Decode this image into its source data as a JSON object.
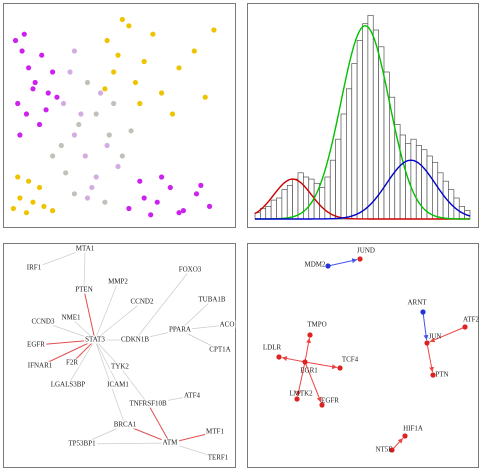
{
  "chart_data": [
    {
      "type": "scatter",
      "xlim": [
        0,
        100
      ],
      "ylim": [
        0,
        100
      ],
      "series": [
        {
          "color": "#cc22ee",
          "x": [
            3,
            6,
            9,
            12,
            15,
            18,
            4,
            8,
            14,
            20,
            5,
            11,
            17,
            22,
            7,
            55,
            62,
            68,
            74,
            80,
            86,
            92,
            60,
            70,
            78,
            88,
            65
          ],
          "values": [
            85,
            80,
            72,
            65,
            78,
            60,
            55,
            50,
            45,
            70,
            40,
            62,
            52,
            58,
            88,
            5,
            10,
            8,
            15,
            4,
            12,
            6,
            18,
            20,
            3,
            16,
            2
          ]
        },
        {
          "color": "#eec400",
          "x": [
            2,
            5,
            8,
            11,
            14,
            4,
            9,
            16,
            20,
            45,
            50,
            55,
            48,
            58,
            62,
            70,
            78,
            85,
            90,
            52,
            66,
            75,
            94,
            44,
            60
          ],
          "values": [
            5,
            10,
            3,
            8,
            15,
            20,
            18,
            6,
            4,
            85,
            78,
            92,
            70,
            65,
            75,
            60,
            72,
            80,
            58,
            95,
            88,
            50,
            90,
            62,
            55
          ]
        },
        {
          "color": "#d3ade2",
          "x": [
            25,
            30,
            35,
            28,
            40,
            45,
            33,
            38,
            42,
            50,
            30,
            36
          ],
          "values": [
            55,
            40,
            30,
            70,
            20,
            35,
            50,
            15,
            60,
            25,
            80,
            10
          ]
        },
        {
          "color": "#c2c0b8",
          "x": [
            20,
            26,
            32,
            40,
            46,
            52,
            30,
            44,
            36,
            56,
            24,
            48
          ],
          "values": [
            30,
            22,
            45,
            50,
            40,
            30,
            12,
            8,
            65,
            42,
            35,
            55
          ]
        }
      ]
    },
    {
      "type": "histogram",
      "xlim": [
        0,
        40
      ],
      "ylim": [
        0,
        100
      ],
      "color": "#555555",
      "bins": [
        0,
        1,
        2,
        3,
        4,
        5,
        6,
        7,
        8,
        9,
        10,
        11,
        12,
        13,
        14,
        15,
        16,
        17,
        18,
        19,
        20,
        21,
        22,
        23,
        24,
        25,
        26,
        27,
        28,
        29,
        30,
        31,
        32,
        33,
        34,
        35,
        36,
        37,
        38,
        39,
        40
      ],
      "values": [
        3,
        5,
        6,
        9,
        10,
        14,
        16,
        19,
        22,
        20,
        19,
        17,
        15,
        20,
        28,
        38,
        50,
        62,
        74,
        85,
        93,
        97,
        90,
        82,
        70,
        58,
        45,
        40,
        36,
        38,
        35,
        33,
        30,
        27,
        22,
        18,
        14,
        10,
        6,
        4
      ],
      "fits": [
        {
          "color": "#cc0000",
          "mean": 7,
          "sd": 3.5,
          "peak": 19
        },
        {
          "color": "#00c000",
          "mean": 20.5,
          "sd": 4.5,
          "peak": 92
        },
        {
          "color": "#0000cc",
          "mean": 29,
          "sd": 4.5,
          "peak": 28
        }
      ]
    },
    {
      "type": "network",
      "nodes": [
        {
          "label": "IRF1"
        },
        {
          "label": "MTA1"
        },
        {
          "label": "MMP2"
        },
        {
          "label": "FOXO3"
        },
        {
          "label": "PTEN"
        },
        {
          "label": "CCND2"
        },
        {
          "label": "TUBA1B"
        },
        {
          "label": "CCND3"
        },
        {
          "label": "NME1"
        },
        {
          "label": "STAT3"
        },
        {
          "label": "CDKN1B"
        },
        {
          "label": "PPARA"
        },
        {
          "label": "ACO"
        },
        {
          "label": "EGFR"
        },
        {
          "label": "CPT1A"
        },
        {
          "label": "IFNAR1"
        },
        {
          "label": "F2R"
        },
        {
          "label": "TYK2"
        },
        {
          "label": "LGALS3BP"
        },
        {
          "label": "ICAM1"
        },
        {
          "label": "TNFRSF10B"
        },
        {
          "label": "ATF4"
        },
        {
          "label": "BRCA1"
        },
        {
          "label": "TP53BP1"
        },
        {
          "label": "ATM"
        },
        {
          "label": "MTF1"
        },
        {
          "label": "TERF1"
        }
      ],
      "edges": [
        {
          "source": 9,
          "target": 4,
          "color": "#e05050"
        },
        {
          "source": 9,
          "target": 13,
          "color": "#e05050"
        },
        {
          "source": 9,
          "target": 15,
          "color": "#e05050"
        },
        {
          "source": 9,
          "target": 16,
          "color": "#e05050"
        },
        {
          "source": 9,
          "target": 8,
          "color": "#cccccc"
        },
        {
          "source": 9,
          "target": 7,
          "color": "#cccccc"
        },
        {
          "source": 9,
          "target": 10,
          "color": "#cccccc"
        },
        {
          "source": 9,
          "target": 17,
          "color": "#cccccc"
        },
        {
          "source": 9,
          "target": 19,
          "color": "#cccccc"
        },
        {
          "source": 9,
          "target": 18,
          "color": "#cccccc"
        },
        {
          "source": 9,
          "target": 2,
          "color": "#cccccc"
        },
        {
          "source": 9,
          "target": 5,
          "color": "#cccccc"
        },
        {
          "source": 1,
          "target": 4,
          "color": "#cccccc"
        },
        {
          "source": 0,
          "target": 1,
          "color": "#cccccc"
        },
        {
          "source": 11,
          "target": 12,
          "color": "#cccccc"
        },
        {
          "source": 11,
          "target": 14,
          "color": "#cccccc"
        },
        {
          "source": 11,
          "target": 6,
          "color": "#cccccc"
        },
        {
          "source": 10,
          "target": 11,
          "color": "#cccccc"
        },
        {
          "source": 17,
          "target": 20,
          "color": "#cccccc"
        },
        {
          "source": 20,
          "target": 21,
          "color": "#cccccc"
        },
        {
          "source": 20,
          "target": 24,
          "color": "#e05050"
        },
        {
          "source": 22,
          "target": 24,
          "color": "#e05050"
        },
        {
          "source": 24,
          "target": 25,
          "color": "#e05050"
        },
        {
          "source": 24,
          "target": 23,
          "color": "#cccccc"
        },
        {
          "source": 24,
          "target": 26,
          "color": "#cccccc"
        },
        {
          "source": 22,
          "target": 23,
          "color": "#cccccc"
        },
        {
          "source": 9,
          "target": 22,
          "color": "#cccccc"
        },
        {
          "source": 10,
          "target": 3,
          "color": "#cccccc"
        }
      ]
    },
    {
      "type": "network",
      "nodes": [
        {
          "label": "MDM2",
          "color": "#2233dd"
        },
        {
          "label": "JUND",
          "color": "#dd2222"
        },
        {
          "label": "ARNT",
          "color": "#2233dd"
        },
        {
          "label": "JUN",
          "color": "#dd2222"
        },
        {
          "label": "ATF2",
          "color": "#dd2222"
        },
        {
          "label": "PTN",
          "color": "#dd2222"
        },
        {
          "label": "TMPO",
          "color": "#dd2222"
        },
        {
          "label": "LDLR",
          "color": "#dd2222"
        },
        {
          "label": "EGR1",
          "color": "#dd2222"
        },
        {
          "label": "TCF4",
          "color": "#dd2222"
        },
        {
          "label": "LMTK2",
          "color": "#dd2222"
        },
        {
          "label": "EGFR",
          "color": "#dd2222"
        },
        {
          "label": "HIF1A",
          "color": "#dd2222"
        },
        {
          "label": "NT5E",
          "color": "#dd2222"
        }
      ],
      "edges": [
        {
          "source": 0,
          "target": 1,
          "color": "#4455ee"
        },
        {
          "source": 2,
          "target": 3,
          "color": "#4455ee"
        },
        {
          "source": 4,
          "target": 3,
          "color": "#ee4444"
        },
        {
          "source": 3,
          "target": 5,
          "color": "#ee4444"
        },
        {
          "source": 8,
          "target": 6,
          "color": "#ee4444"
        },
        {
          "source": 8,
          "target": 7,
          "color": "#ee4444"
        },
        {
          "source": 8,
          "target": 9,
          "color": "#ee4444"
        },
        {
          "source": 8,
          "target": 10,
          "color": "#ee4444"
        },
        {
          "source": 8,
          "target": 11,
          "color": "#ee4444"
        },
        {
          "source": 13,
          "target": 12,
          "color": "#ee4444"
        }
      ]
    }
  ]
}
